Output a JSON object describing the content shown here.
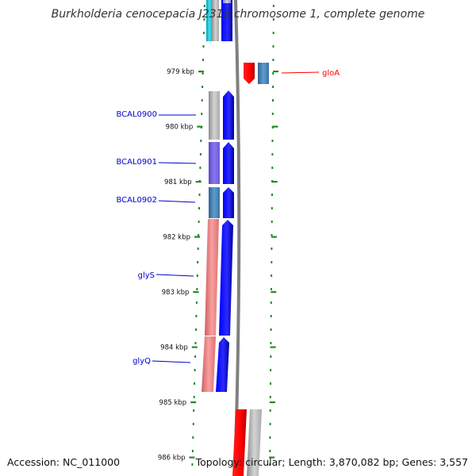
{
  "title": "Burkholderia cenocepacia J2315 chromosome 1, complete genome",
  "accession": "Accession: NC_011000",
  "topology": "Topology: circular; Length: 3,870,082 bp; Genes: 3,557",
  "colors": {
    "backbone": "#808080",
    "forward_strand": "#0000ff",
    "reverse_strand": "#ff0000",
    "gene_label": "#0000cc",
    "tick_mark": "#228b22",
    "rna_teal": "#20b2aa",
    "gene_grey": "#b0b0b0",
    "gene_purple": "#7b68ee",
    "gene_steelblue": "#4682b4",
    "gene_salmon": "#f08080"
  },
  "ticks": [
    {
      "label": "979 kbp",
      "kbp": 979
    },
    {
      "label": "980 kbp",
      "kbp": 980
    },
    {
      "label": "981 kbp",
      "kbp": 981
    },
    {
      "label": "982 kbp",
      "kbp": 982
    },
    {
      "label": "983 kbp",
      "kbp": 983
    },
    {
      "label": "984 kbp",
      "kbp": 984
    },
    {
      "label": "985 kbp",
      "kbp": 985
    },
    {
      "label": "986 kbp",
      "kbp": 986
    }
  ],
  "gene_labels": [
    {
      "name": "gloA",
      "strand": "reverse"
    },
    {
      "name": "BCAL0900",
      "strand": "forward"
    },
    {
      "name": "BCAL0901",
      "strand": "forward"
    },
    {
      "name": "BCAL0902",
      "strand": "forward"
    },
    {
      "name": "glyS",
      "strand": "forward"
    },
    {
      "name": "glyQ",
      "strand": "forward"
    }
  ]
}
